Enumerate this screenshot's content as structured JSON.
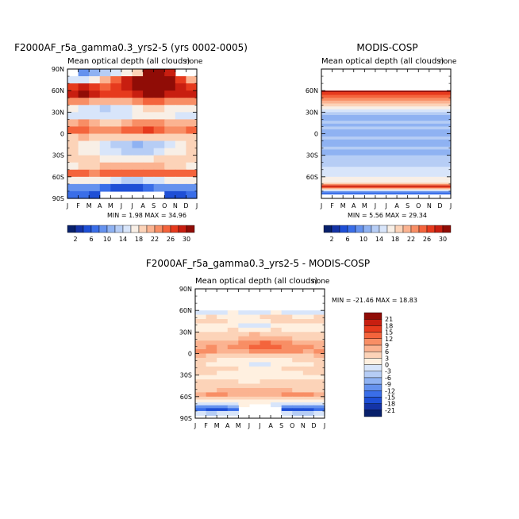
{
  "chart_data": [
    {
      "type": "heatmap",
      "title": "F2000AF_r5a_gamma0.3_yrs2-5 (yrs 0002-0005)",
      "subtitle": "Mean optical depth (all clouds)",
      "units": "none",
      "x_ticks": [
        "J",
        "F",
        "M",
        "A",
        "M",
        "J",
        "J",
        "A",
        "S",
        "O",
        "N",
        "D",
        "J"
      ],
      "y_ticks": [
        "90N",
        "60N",
        "30N",
        "0",
        "30S",
        "60S",
        "90S"
      ],
      "ylim": [
        -90,
        90
      ],
      "stats": "MIN =    1.98  MAX =  34.96",
      "min": 1.98,
      "max": 34.96,
      "latitudes": [
        85,
        75,
        65,
        55,
        45,
        35,
        25,
        15,
        5,
        -5,
        -15,
        -25,
        -35,
        -45,
        -55,
        -65,
        -75,
        -85
      ],
      "months": [
        "J",
        "F",
        "M",
        "A",
        "M",
        "J",
        "J",
        "A",
        "S",
        "O",
        "N",
        "D"
      ],
      "values": [
        [
          null,
          9,
          10,
          12,
          14,
          16,
          18,
          30,
          31,
          28,
          null,
          null
        ],
        [
          14,
          15,
          17,
          20,
          24,
          28,
          30,
          32,
          33,
          30,
          26,
          20
        ],
        [
          26,
          28,
          27,
          25,
          26,
          29,
          32,
          33,
          33,
          31,
          28,
          27
        ],
        [
          29,
          30,
          28,
          26,
          26,
          27,
          29,
          30,
          30,
          28,
          28,
          29
        ],
        [
          22,
          23,
          21,
          20,
          20,
          21,
          23,
          24,
          24,
          22,
          22,
          23
        ],
        [
          16,
          15,
          14,
          13,
          14,
          15,
          17,
          18,
          18,
          16,
          16,
          16
        ],
        [
          15,
          15,
          15,
          14,
          14,
          15,
          16,
          16,
          16,
          16,
          15,
          15
        ],
        [
          21,
          22,
          20,
          19,
          19,
          21,
          22,
          23,
          22,
          21,
          20,
          21
        ],
        [
          24,
          24,
          23,
          22,
          22,
          24,
          25,
          26,
          25,
          23,
          22,
          24
        ],
        [
          19,
          20,
          19,
          19,
          18,
          18,
          18,
          19,
          18,
          18,
          19,
          19
        ],
        [
          18,
          17,
          16,
          15,
          13,
          12,
          11,
          12,
          13,
          15,
          17,
          18
        ],
        [
          18,
          17,
          16,
          15,
          14,
          13,
          12,
          13,
          14,
          16,
          17,
          18
        ],
        [
          19,
          19,
          18,
          17,
          17,
          17,
          17,
          17,
          18,
          18,
          19,
          19
        ],
        [
          17,
          18,
          19,
          20,
          20,
          20,
          20,
          20,
          20,
          19,
          18,
          17
        ],
        [
          24,
          24,
          23,
          24,
          25,
          24,
          24,
          25,
          25,
          24,
          24,
          24
        ],
        [
          16,
          17,
          16,
          16,
          15,
          13,
          13,
          14,
          15,
          16,
          16,
          16
        ],
        [
          9,
          9,
          9,
          7,
          5,
          4,
          5,
          6,
          8,
          9,
          9,
          9
        ],
        [
          6,
          6,
          5,
          null,
          null,
          null,
          null,
          null,
          null,
          4,
          5,
          6
        ]
      ],
      "colorbar": {
        "labels": [
          "2",
          "6",
          "10",
          "14",
          "18",
          "22",
          "26",
          "30"
        ],
        "levels": [
          2,
          4,
          6,
          8,
          10,
          12,
          14,
          16,
          18,
          20,
          22,
          24,
          26,
          28,
          30
        ],
        "colors": [
          "#08206b",
          "#1433a6",
          "#1e4fd6",
          "#3a6ee8",
          "#6592ee",
          "#8fb2f2",
          "#b6cdf5",
          "#d8e5fa",
          "#f8efe6",
          "#fcd3b8",
          "#fbb391",
          "#f88e65",
          "#f4643c",
          "#e63a1d",
          "#c81e10",
          "#900c06"
        ]
      }
    },
    {
      "type": "heatmap",
      "title": "MODIS-COSP",
      "subtitle": "Mean optical depth (all clouds)",
      "units": "none",
      "x_ticks": [
        "J",
        "F",
        "M",
        "A",
        "M",
        "J",
        "J",
        "A",
        "S",
        "O",
        "N",
        "D",
        "J"
      ],
      "y_ticks": [
        "60N",
        "30N",
        "0",
        "30S",
        "60S"
      ],
      "ylim": [
        -90,
        90
      ],
      "stats": "MIN =    5.56  MAX =  29.34",
      "min": 5.56,
      "max": 29.34,
      "bands": [
        {
          "lat_top": 60,
          "lat_bot": 58,
          "value": 30
        },
        {
          "lat_top": 58,
          "lat_bot": 54,
          "value": 27
        },
        {
          "lat_top": 54,
          "lat_bot": 50,
          "value": 25
        },
        {
          "lat_top": 50,
          "lat_bot": 46,
          "value": 23
        },
        {
          "lat_top": 46,
          "lat_bot": 42,
          "value": 21
        },
        {
          "lat_top": 42,
          "lat_bot": 38,
          "value": 19
        },
        {
          "lat_top": 38,
          "lat_bot": 34,
          "value": 17
        },
        {
          "lat_top": 34,
          "lat_bot": 30,
          "value": 14
        },
        {
          "lat_top": 30,
          "lat_bot": 26,
          "value": 12
        },
        {
          "lat_top": 26,
          "lat_bot": 22,
          "value": 10
        },
        {
          "lat_top": 22,
          "lat_bot": 18,
          "value": 11
        },
        {
          "lat_top": 18,
          "lat_bot": 14,
          "value": 13
        },
        {
          "lat_top": 14,
          "lat_bot": 10,
          "value": 11
        },
        {
          "lat_top": 10,
          "lat_bot": 6,
          "value": 12
        },
        {
          "lat_top": 6,
          "lat_bot": 2,
          "value": 10
        },
        {
          "lat_top": 2,
          "lat_bot": -4,
          "value": 11
        },
        {
          "lat_top": -4,
          "lat_bot": -8,
          "value": 13
        },
        {
          "lat_top": -8,
          "lat_bot": -12,
          "value": 11
        },
        {
          "lat_top": -12,
          "lat_bot": -18,
          "value": 10
        },
        {
          "lat_top": -18,
          "lat_bot": -22,
          "value": 12
        },
        {
          "lat_top": -22,
          "lat_bot": -30,
          "value": 11
        },
        {
          "lat_top": -30,
          "lat_bot": -36,
          "value": 12
        },
        {
          "lat_top": -36,
          "lat_bot": -46,
          "value": 13
        },
        {
          "lat_top": -46,
          "lat_bot": -60,
          "value": 15
        },
        {
          "lat_top": -60,
          "lat_bot": -68,
          "value": 16
        },
        {
          "lat_top": -68,
          "lat_bot": -70,
          "value": 19
        },
        {
          "lat_top": -70,
          "lat_bot": -72,
          "value": 23
        },
        {
          "lat_top": -72,
          "lat_bot": -74,
          "value": 28
        },
        {
          "lat_top": -74,
          "lat_bot": -76,
          "value": 24
        },
        {
          "lat_top": -76,
          "lat_bot": -78,
          "value": 19
        },
        {
          "lat_top": -78,
          "lat_bot": -80,
          "value": 14
        },
        {
          "lat_top": -80,
          "lat_bot": -82,
          "value": 9
        },
        {
          "lat_top": -82,
          "lat_bot": -84,
          "value": 6
        }
      ],
      "colorbar": {
        "labels": [
          "2",
          "6",
          "10",
          "14",
          "18",
          "22",
          "26",
          "30"
        ],
        "levels": [
          2,
          4,
          6,
          8,
          10,
          12,
          14,
          16,
          18,
          20,
          22,
          24,
          26,
          28,
          30
        ],
        "colors": [
          "#08206b",
          "#1433a6",
          "#1e4fd6",
          "#3a6ee8",
          "#6592ee",
          "#8fb2f2",
          "#b6cdf5",
          "#d8e5fa",
          "#f8efe6",
          "#fcd3b8",
          "#fbb391",
          "#f88e65",
          "#f4643c",
          "#e63a1d",
          "#c81e10",
          "#900c06"
        ]
      }
    },
    {
      "type": "heatmap",
      "title": "F2000AF_r5a_gamma0.3_yrs2-5 - MODIS-COSP",
      "subtitle": "Mean optical depth (all clouds)",
      "units": "none",
      "x_ticks": [
        "J",
        "F",
        "M",
        "A",
        "M",
        "J",
        "J",
        "A",
        "S",
        "O",
        "N",
        "D",
        "J"
      ],
      "y_ticks": [
        "90N",
        "60N",
        "30N",
        "0",
        "30S",
        "60S",
        "90S"
      ],
      "ylim": [
        -90,
        90
      ],
      "stats": "MIN = -21.46  MAX =  18.83",
      "min": -21.46,
      "max": 18.83,
      "latitudes": [
        57,
        51,
        45,
        39,
        33,
        27,
        21,
        15,
        9,
        3,
        -3,
        -9,
        -15,
        -21,
        -27,
        -33,
        -39,
        -45,
        -51,
        -57,
        -63,
        -67,
        -71,
        -75,
        -79,
        -83
      ],
      "months": [
        "J",
        "F",
        "M",
        "A",
        "M",
        "J",
        "J",
        "A",
        "S",
        "O",
        "N",
        "D"
      ],
      "values": [
        [
          -1,
          -2,
          -1,
          0,
          -1,
          -2,
          -1,
          0,
          -1,
          -1,
          -2,
          -1
        ],
        [
          2,
          3,
          2,
          1,
          2,
          2,
          3,
          4,
          3,
          2,
          2,
          3
        ],
        [
          4,
          5,
          3,
          2,
          1,
          1,
          2,
          3,
          4,
          3,
          3,
          4
        ],
        [
          1,
          2,
          1,
          0,
          -1,
          -2,
          -1,
          0,
          1,
          0,
          1,
          1
        ],
        [
          2,
          1,
          2,
          3,
          2,
          1,
          2,
          3,
          2,
          1,
          2,
          2
        ],
        [
          4,
          4,
          3,
          4,
          5,
          6,
          5,
          4,
          5,
          4,
          3,
          4
        ],
        [
          3,
          3,
          4,
          5,
          6,
          7,
          7,
          6,
          6,
          5,
          4,
          3
        ],
        [
          6,
          7,
          6,
          7,
          9,
          11,
          12,
          11,
          9,
          8,
          7,
          6
        ],
        [
          8,
          9,
          8,
          9,
          11,
          13,
          14,
          13,
          11,
          10,
          9,
          8
        ],
        [
          9,
          9,
          8,
          8,
          8,
          9,
          10,
          10,
          9,
          9,
          8,
          9
        ],
        [
          6,
          5,
          4,
          4,
          3,
          3,
          4,
          5,
          4,
          4,
          5,
          6
        ],
        [
          4,
          3,
          2,
          2,
          1,
          0,
          0,
          1,
          2,
          3,
          3,
          4
        ],
        [
          3,
          2,
          2,
          1,
          1,
          -1,
          -1,
          0,
          1,
          2,
          2,
          3
        ],
        [
          4,
          4,
          3,
          3,
          2,
          2,
          2,
          2,
          3,
          3,
          4,
          4
        ],
        [
          3,
          3,
          2,
          2,
          2,
          1,
          1,
          1,
          2,
          2,
          3,
          3
        ],
        [
          2,
          2,
          2,
          1,
          1,
          1,
          1,
          2,
          2,
          2,
          2,
          2
        ],
        [
          3,
          3,
          3,
          3,
          2,
          2,
          3,
          3,
          3,
          3,
          3,
          3
        ],
        [
          3,
          3,
          4,
          4,
          4,
          4,
          4,
          4,
          3,
          3,
          3,
          3
        ],
        [
          5,
          5,
          6,
          6,
          7,
          6,
          6,
          6,
          6,
          5,
          5,
          5
        ],
        [
          8,
          9,
          9,
          8,
          8,
          8,
          7,
          8,
          9,
          9,
          9,
          8
        ],
        [
          5,
          5,
          4,
          4,
          4,
          3,
          3,
          4,
          5,
          5,
          5,
          5
        ],
        [
          1,
          1,
          1,
          1,
          0,
          0,
          0,
          1,
          1,
          1,
          1,
          1
        ],
        [
          -2,
          -3,
          -2,
          -1,
          0,
          null,
          null,
          -1,
          -2,
          -3,
          -2,
          -2
        ],
        [
          -10,
          -12,
          -11,
          -9,
          null,
          null,
          null,
          null,
          -10,
          -11,
          -12,
          -10
        ],
        [
          -15,
          -17,
          -16,
          -14,
          null,
          null,
          null,
          null,
          -16,
          -17,
          -18,
          -15
        ],
        [
          -3,
          -4,
          -3,
          -2,
          null,
          null,
          null,
          null,
          -3,
          -4,
          -4,
          -3
        ]
      ],
      "colorbar": {
        "labels": [
          "21",
          "18",
          "15",
          "12",
          "9",
          "6",
          "3",
          "0",
          "-3",
          "-6",
          "-9",
          "-12",
          "-15",
          "-18",
          "-21"
        ],
        "levels": [
          -21,
          -18,
          -15,
          -12,
          -9,
          -6,
          -3,
          0,
          3,
          6,
          9,
          12,
          15,
          18,
          21
        ],
        "colors": [
          "#08206b",
          "#1433a6",
          "#1e4fd6",
          "#3a6ee8",
          "#6592ee",
          "#8fb2f2",
          "#b6cdf5",
          "#d8e5fa",
          "#fff0e0",
          "#fcd3b8",
          "#fbb391",
          "#f88e65",
          "#f4643c",
          "#e63a1d",
          "#c81e10",
          "#900c06"
        ]
      }
    }
  ]
}
